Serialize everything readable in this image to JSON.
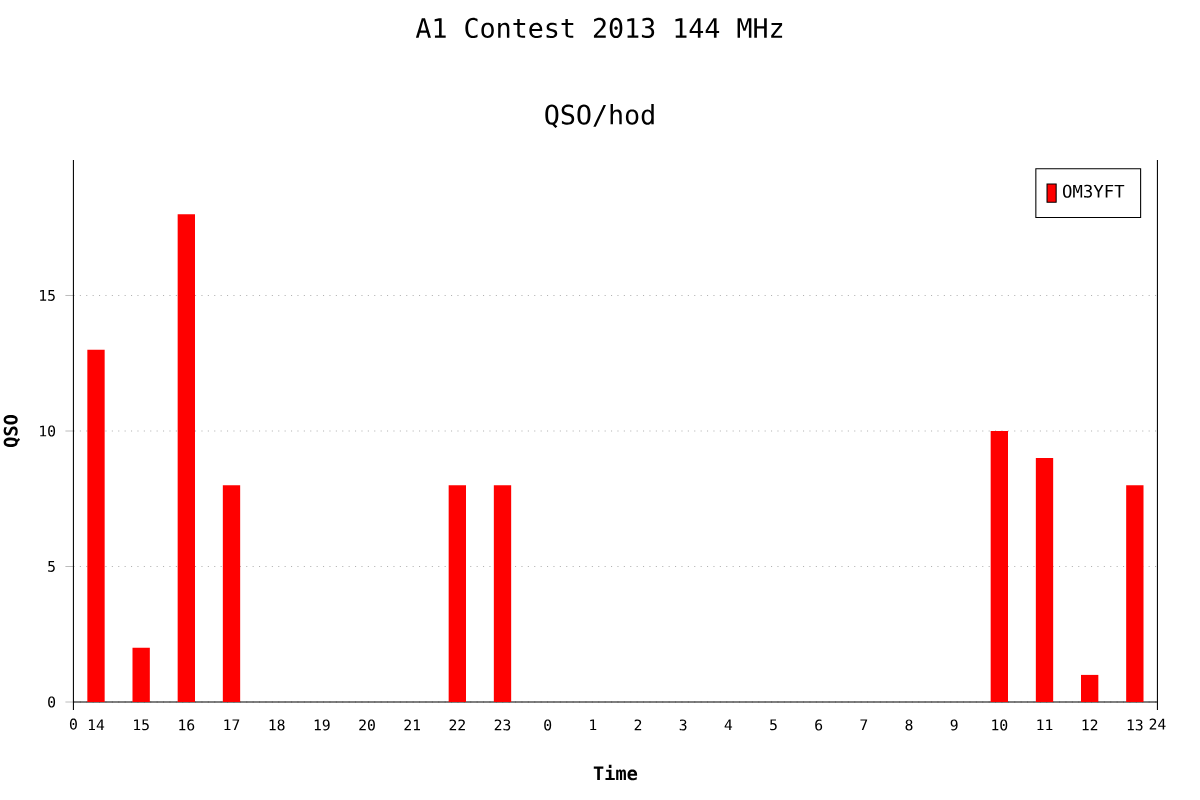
{
  "chart_data": {
    "type": "bar",
    "title": "A1 Contest 2013 144 MHz",
    "subtitle": "QSO/hod",
    "xlabel": "Time",
    "ylabel": "QSO",
    "categories": [
      "14",
      "15",
      "16",
      "17",
      "18",
      "19",
      "20",
      "21",
      "22",
      "23",
      "0",
      "1",
      "2",
      "3",
      "4",
      "5",
      "6",
      "7",
      "8",
      "9",
      "10",
      "11",
      "12",
      "13"
    ],
    "series": [
      {
        "name": "OM3YFT",
        "color": "#ff0000",
        "values": [
          13,
          2,
          18,
          8,
          0,
          0,
          0,
          0,
          8,
          8,
          0,
          0,
          0,
          0,
          0,
          0,
          0,
          0,
          0,
          0,
          10,
          9,
          1,
          8
        ]
      }
    ],
    "annotations": [
      "0",
      "24"
    ],
    "ylim": [
      0,
      20
    ],
    "yticks": [
      0,
      5,
      10,
      15
    ],
    "grid": "y",
    "legend": "top right"
  }
}
